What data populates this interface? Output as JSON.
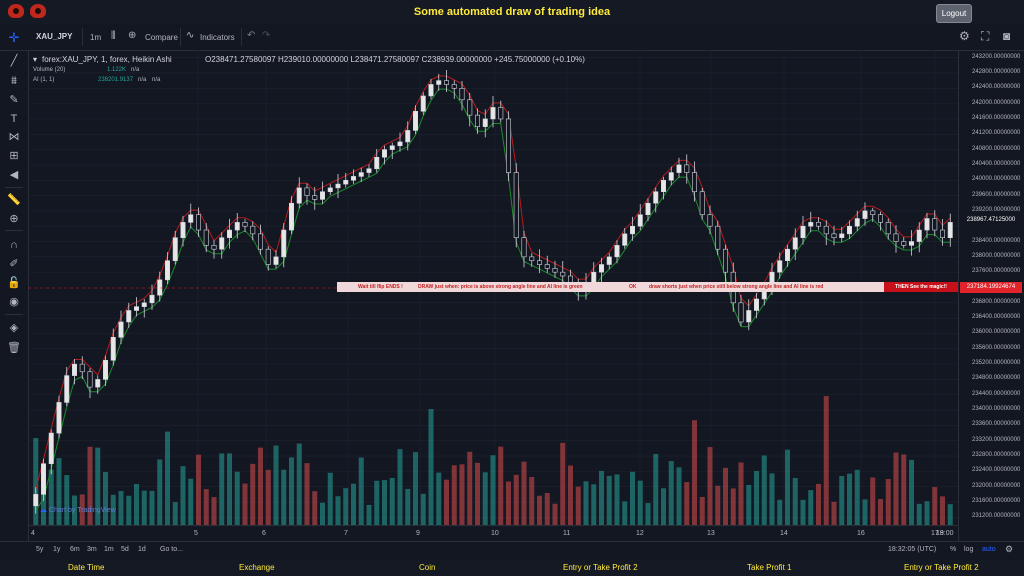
{
  "app": {
    "title": "Some automated draw of trading idea",
    "logout_label": "Logout"
  },
  "toolbar": {
    "symbol": "XAU_JPY",
    "interval": "1m",
    "compare": "Compare",
    "indicators": "Indicators"
  },
  "legend": {
    "main_title": "forex:XAU_JPY, 1, forex, Heikin Ashi",
    "ohlc": "O238471.27580097  H239010.00000000  L238471.27580097  C238939.00000000  +245.75000000 (+0.10%)",
    "volume_name": "Volume (20)",
    "volume_value": "1.122K",
    "volume_na": "n/a",
    "ai_name": "AI (1, 1)",
    "ai_value": "238201.9137",
    "ai_na1": "n/a",
    "ai_na2": "n/a"
  },
  "price_axis": [
    "243200.00000000",
    "242800.00000000",
    "242400.00000000",
    "242000.00000000",
    "241600.00000000",
    "241200.00000000",
    "240800.00000000",
    "240400.00000000",
    "240000.00000000",
    "239600.00000000",
    "239200.00000000",
    "238800.00000000",
    "238400.00000000",
    "238000.00000000",
    "237600.00000000",
    "236800.00000000",
    "236400.00000000",
    "236000.00000000",
    "235600.00000000",
    "235200.00000000",
    "234800.00000000",
    "234400.00000000",
    "234000.00000000",
    "233600.00000000",
    "233200.00000000",
    "232800.00000000",
    "232400.00000000",
    "232000.00000000",
    "231600.00000000",
    "231200.00000000"
  ],
  "last_price": "238967.47125000",
  "current_price": "237184.19924674",
  "banner": {
    "t1": "Wait till flip ENDS !",
    "t2": "DRAW just when:  price is above strong angle line and AI line is green",
    "t3": "OK",
    "t4": "draw shorts just when price still below strong angle line and AI line is red",
    "t5": "THEN See the magic!!"
  },
  "date_axis": [
    "4",
    "5",
    "6",
    "7",
    "9",
    "10",
    "11",
    "12",
    "13",
    "14",
    "16",
    "17",
    "18",
    "19:00"
  ],
  "range_bar": {
    "ranges": [
      "5y",
      "1y",
      "6m",
      "3m",
      "1m",
      "5d",
      "1d"
    ],
    "goto": "Go to...",
    "time": "18:32:05 (UTC)",
    "pct": "%",
    "log": "log",
    "auto": "auto"
  },
  "watermark": "Chart by TradingView",
  "footer": [
    "Date Time",
    "Exchange",
    "Coin",
    "Entry or Take Profit 2",
    "Take Profit 1",
    "Entry or Take Profit 2"
  ],
  "chart_data": {
    "type": "candlestick",
    "symbol": "XAU_JPY",
    "ylim": [
      231000,
      243400
    ],
    "closes": [
      231800,
      232600,
      233400,
      234200,
      234900,
      235200,
      235000,
      234600,
      234800,
      235300,
      235900,
      236300,
      236600,
      236700,
      236800,
      237000,
      237400,
      237900,
      238500,
      238900,
      239100,
      238700,
      238300,
      238200,
      238500,
      238700,
      238900,
      238800,
      238600,
      238200,
      237800,
      238000,
      238700,
      239400,
      239800,
      239600,
      239500,
      239700,
      239800,
      239900,
      240000,
      240100,
      240200,
      240300,
      240600,
      240800,
      240900,
      241000,
      241300,
      241800,
      242200,
      242500,
      242600,
      242500,
      242400,
      242100,
      241700,
      241400,
      241600,
      241900,
      241600,
      240200,
      238500,
      238000,
      237900,
      237800,
      237700,
      237600,
      237500,
      237300,
      237100,
      237300,
      237600,
      237800,
      238000,
      238300,
      238600,
      238800,
      239100,
      239400,
      239700,
      240000,
      240200,
      240400,
      240200,
      239700,
      239100,
      238800,
      238200,
      237600,
      236800,
      236300,
      236600,
      236900,
      237200,
      237600,
      237900,
      238200,
      238500,
      238800,
      238900,
      238800,
      238600,
      238500,
      238600,
      238800,
      239000,
      239200,
      239100,
      238900,
      238600,
      238400,
      238300,
      238400,
      238700,
      239000,
      238700,
      238500,
      238900
    ]
  }
}
